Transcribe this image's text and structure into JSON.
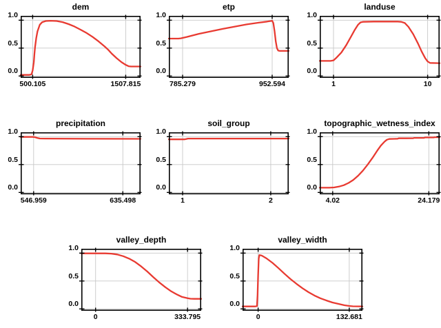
{
  "figure": {
    "background": "#ffffff",
    "curve_color": "#e83a31",
    "grid_color": "#c8c8c8",
    "border_color": "#000000",
    "y_tick_labels": [
      "1.0",
      "0.5",
      "0.0"
    ]
  },
  "chart_data": [
    {
      "type": "line",
      "title": "dem",
      "xlabel": "",
      "ylabel": "",
      "ylim": [
        0,
        1
      ],
      "grid": true,
      "legend": "none",
      "x_tick_labels": [
        "500.105",
        "1507.815"
      ],
      "x_tick_pos": [
        0.1,
        0.876
      ],
      "points": [
        [
          0,
          0.02
        ],
        [
          0.07,
          0.02
        ],
        [
          0.09,
          0.03
        ],
        [
          0.1,
          0.1
        ],
        [
          0.11,
          0.25
        ],
        [
          0.115,
          0.4
        ],
        [
          0.12,
          0.52
        ],
        [
          0.13,
          0.68
        ],
        [
          0.14,
          0.8
        ],
        [
          0.16,
          0.92
        ],
        [
          0.18,
          0.965
        ],
        [
          0.21,
          0.985
        ],
        [
          0.25,
          0.99
        ],
        [
          0.3,
          0.985
        ],
        [
          0.35,
          0.965
        ],
        [
          0.4,
          0.93
        ],
        [
          0.45,
          0.885
        ],
        [
          0.5,
          0.83
        ],
        [
          0.55,
          0.77
        ],
        [
          0.6,
          0.7
        ],
        [
          0.65,
          0.62
        ],
        [
          0.7,
          0.53
        ],
        [
          0.73,
          0.47
        ],
        [
          0.76,
          0.4
        ],
        [
          0.8,
          0.32
        ],
        [
          0.84,
          0.25
        ],
        [
          0.876,
          0.2
        ],
        [
          0.9,
          0.175
        ],
        [
          0.92,
          0.17
        ],
        [
          1.0,
          0.17
        ]
      ]
    },
    {
      "type": "line",
      "title": "etp",
      "xlabel": "",
      "ylabel": "",
      "ylim": [
        0,
        1
      ],
      "grid": true,
      "legend": "none",
      "x_tick_labels": [
        "785.279",
        "952.594"
      ],
      "x_tick_pos": [
        0.115,
        0.862
      ],
      "points": [
        [
          0,
          0.67
        ],
        [
          0.08,
          0.67
        ],
        [
          0.1,
          0.675
        ],
        [
          0.15,
          0.7
        ],
        [
          0.25,
          0.755
        ],
        [
          0.35,
          0.8
        ],
        [
          0.45,
          0.845
        ],
        [
          0.55,
          0.885
        ],
        [
          0.65,
          0.925
        ],
        [
          0.75,
          0.955
        ],
        [
          0.82,
          0.975
        ],
        [
          0.85,
          0.985
        ],
        [
          0.862,
          0.99
        ],
        [
          0.872,
          0.95
        ],
        [
          0.882,
          0.8
        ],
        [
          0.892,
          0.62
        ],
        [
          0.902,
          0.5
        ],
        [
          0.912,
          0.455
        ],
        [
          0.925,
          0.45
        ],
        [
          1.0,
          0.45
        ]
      ]
    },
    {
      "type": "line",
      "title": "landuse",
      "xlabel": "",
      "ylabel": "",
      "ylim": [
        0,
        1
      ],
      "grid": true,
      "legend": "none",
      "x_tick_labels": [
        "1",
        "10"
      ],
      "x_tick_pos": [
        0.115,
        0.9
      ],
      "points": [
        [
          0,
          0.27
        ],
        [
          0.09,
          0.27
        ],
        [
          0.115,
          0.28
        ],
        [
          0.14,
          0.33
        ],
        [
          0.18,
          0.42
        ],
        [
          0.22,
          0.55
        ],
        [
          0.26,
          0.7
        ],
        [
          0.29,
          0.82
        ],
        [
          0.32,
          0.92
        ],
        [
          0.34,
          0.96
        ],
        [
          0.36,
          0.97
        ],
        [
          0.45,
          0.975
        ],
        [
          0.55,
          0.975
        ],
        [
          0.65,
          0.975
        ],
        [
          0.68,
          0.97
        ],
        [
          0.71,
          0.95
        ],
        [
          0.74,
          0.88
        ],
        [
          0.78,
          0.75
        ],
        [
          0.82,
          0.58
        ],
        [
          0.85,
          0.44
        ],
        [
          0.88,
          0.32
        ],
        [
          0.9,
          0.26
        ],
        [
          0.92,
          0.235
        ],
        [
          1.0,
          0.23
        ]
      ]
    },
    {
      "type": "line",
      "title": "precipitation",
      "xlabel": "",
      "ylabel": "",
      "ylim": [
        0,
        1
      ],
      "grid": true,
      "legend": "none",
      "x_tick_labels": [
        "546.959",
        "635.498"
      ],
      "x_tick_pos": [
        0.108,
        0.852
      ],
      "points": [
        [
          0,
          0.995
        ],
        [
          0.1,
          0.995
        ],
        [
          0.12,
          0.99
        ],
        [
          0.14,
          0.975
        ],
        [
          0.16,
          0.967
        ],
        [
          0.2,
          0.965
        ],
        [
          0.6,
          0.962
        ],
        [
          1.0,
          0.96
        ]
      ]
    },
    {
      "type": "line",
      "title": "soil_group",
      "xlabel": "",
      "ylabel": "",
      "ylim": [
        0,
        1
      ],
      "grid": true,
      "legend": "none",
      "x_tick_labels": [
        "1",
        "2"
      ],
      "x_tick_pos": [
        0.115,
        0.85
      ],
      "points": [
        [
          0,
          0.952
        ],
        [
          0.13,
          0.952
        ],
        [
          0.145,
          0.958
        ],
        [
          0.16,
          0.965
        ],
        [
          0.3,
          0.965
        ],
        [
          1.0,
          0.965
        ]
      ]
    },
    {
      "type": "line",
      "title": "topographic_wetness_index",
      "xlabel": "",
      "ylabel": "",
      "ylim": [
        0,
        1
      ],
      "grid": true,
      "legend": "none",
      "x_tick_labels": [
        "4.02",
        "24.179"
      ],
      "x_tick_pos": [
        0.108,
        0.91
      ],
      "points": [
        [
          0,
          0.085
        ],
        [
          0.08,
          0.085
        ],
        [
          0.12,
          0.09
        ],
        [
          0.16,
          0.105
        ],
        [
          0.2,
          0.13
        ],
        [
          0.24,
          0.17
        ],
        [
          0.28,
          0.225
        ],
        [
          0.32,
          0.3
        ],
        [
          0.36,
          0.39
        ],
        [
          0.4,
          0.5
        ],
        [
          0.44,
          0.62
        ],
        [
          0.48,
          0.75
        ],
        [
          0.51,
          0.84
        ],
        [
          0.54,
          0.91
        ],
        [
          0.56,
          0.945
        ],
        [
          0.58,
          0.958
        ],
        [
          0.62,
          0.96
        ],
        [
          0.65,
          0.963
        ],
        [
          0.658,
          0.97
        ],
        [
          0.72,
          0.97
        ],
        [
          0.78,
          0.972
        ],
        [
          0.788,
          0.978
        ],
        [
          0.87,
          0.978
        ],
        [
          0.878,
          0.985
        ],
        [
          0.95,
          0.985
        ],
        [
          0.958,
          0.99
        ],
        [
          1.0,
          0.99
        ]
      ]
    },
    {
      "type": "line",
      "title": "valley_depth",
      "xlabel": "",
      "ylabel": "",
      "ylim": [
        0,
        1
      ],
      "grid": true,
      "legend": "none",
      "x_tick_labels": [
        "0",
        "333.795"
      ],
      "x_tick_pos": [
        0.119,
        0.886
      ],
      "points": [
        [
          0,
          0.995
        ],
        [
          0.2,
          0.995
        ],
        [
          0.25,
          0.99
        ],
        [
          0.3,
          0.975
        ],
        [
          0.35,
          0.945
        ],
        [
          0.4,
          0.9
        ],
        [
          0.45,
          0.84
        ],
        [
          0.5,
          0.76
        ],
        [
          0.55,
          0.67
        ],
        [
          0.6,
          0.57
        ],
        [
          0.65,
          0.475
        ],
        [
          0.7,
          0.39
        ],
        [
          0.75,
          0.315
        ],
        [
          0.8,
          0.255
        ],
        [
          0.84,
          0.215
        ],
        [
          0.886,
          0.192
        ],
        [
          0.91,
          0.183
        ],
        [
          0.94,
          0.18
        ],
        [
          1.0,
          0.18
        ]
      ]
    },
    {
      "type": "line",
      "title": "valley_width",
      "xlabel": "",
      "ylabel": "",
      "ylim": [
        0,
        1
      ],
      "grid": true,
      "legend": "none",
      "x_tick_labels": [
        "0",
        "132.681"
      ],
      "x_tick_pos": [
        0.13,
        0.89
      ],
      "points": [
        [
          0,
          0.045
        ],
        [
          0.105,
          0.045
        ],
        [
          0.12,
          0.05
        ],
        [
          0.125,
          0.25
        ],
        [
          0.13,
          0.6
        ],
        [
          0.135,
          0.9
        ],
        [
          0.14,
          0.965
        ],
        [
          0.16,
          0.955
        ],
        [
          0.2,
          0.905
        ],
        [
          0.25,
          0.825
        ],
        [
          0.3,
          0.73
        ],
        [
          0.35,
          0.63
        ],
        [
          0.4,
          0.535
        ],
        [
          0.45,
          0.45
        ],
        [
          0.5,
          0.37
        ],
        [
          0.55,
          0.3
        ],
        [
          0.6,
          0.24
        ],
        [
          0.65,
          0.19
        ],
        [
          0.7,
          0.15
        ],
        [
          0.75,
          0.115
        ],
        [
          0.8,
          0.09
        ],
        [
          0.85,
          0.065
        ],
        [
          0.89,
          0.053
        ],
        [
          0.92,
          0.047
        ],
        [
          1.0,
          0.045
        ]
      ]
    }
  ]
}
